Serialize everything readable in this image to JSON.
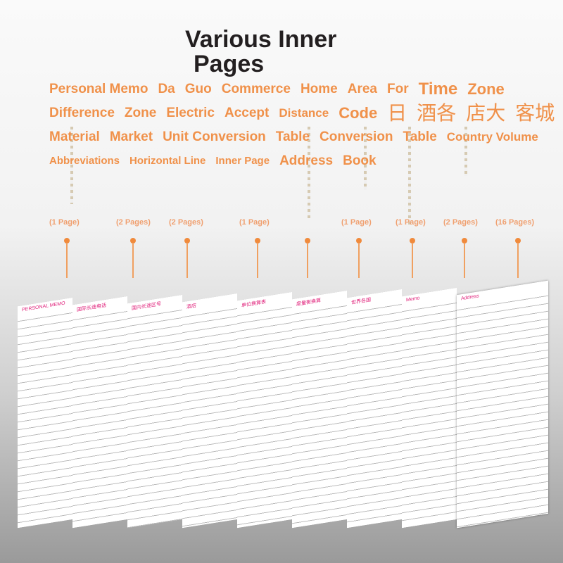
{
  "title": [
    "Various Inner",
    "Pages"
  ],
  "labels": {
    "personal_memo": "Personal Memo",
    "da": "Da",
    "guo": "Guo",
    "commerce": "Commerce",
    "home": "Home",
    "area": "Area",
    "for": "For",
    "time": "Time",
    "zone": "Zone",
    "difference": "Difference",
    "zone2": "Zone",
    "electric": "Electric",
    "accept": "Accept",
    "distance": "Distance",
    "code": "Code",
    "ri": "日",
    "cn1": "酒各",
    "cn2": "店大",
    "cn3": "客城",
    "material": "Material",
    "market": "Market",
    "unit_conversion": "Unit Conversion",
    "table1": "Table",
    "conversion": "Conversion",
    "table2": "Table",
    "country_volume": "Country Volume",
    "abbreviations": "Abbreviations",
    "horizontal_line": "Horizontal Line",
    "inner_page": "Inner Page",
    "address": "Address",
    "book": "Book"
  },
  "counts": [
    "(1 Page)",
    "(2 Pages)",
    "(2 Pages)",
    "(1 Page)",
    "(1 Page)",
    "(1 Page)",
    "(2 Pages)",
    "(16 Pages)"
  ],
  "sheets": [
    "PERSONAL MEMO",
    "国际长途电话",
    "国内长途区号",
    "酒店",
    "单位换算表",
    "度量衡换算",
    "世界各国",
    "Memo",
    "Address"
  ],
  "accent": "#f0914a"
}
